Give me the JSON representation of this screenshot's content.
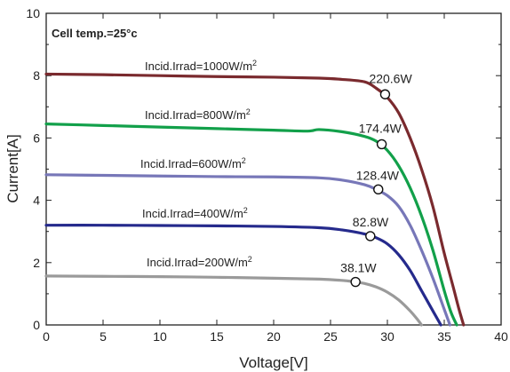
{
  "chart_data": {
    "type": "line",
    "title": "",
    "xlabel": "Voltage[V]",
    "ylabel": "Current[A]",
    "xlim": [
      0,
      40
    ],
    "ylim": [
      0,
      10
    ],
    "xticks": [
      0,
      5,
      10,
      15,
      20,
      25,
      30,
      35,
      40
    ],
    "yticks": [
      0,
      2,
      4,
      6,
      8,
      10
    ],
    "grid": false,
    "annotation": "Cell temp.=25°c",
    "series": [
      {
        "name": "Incid.Irrad=1000W/m2",
        "label_prefix": "Incid.Irrad=1000W/m",
        "label_sup": "2",
        "color": "#7a2a2e",
        "x": [
          0,
          5,
          10,
          15,
          20,
          24,
          26,
          28,
          29,
          30,
          31,
          32,
          33,
          34,
          35,
          35.8,
          36.3,
          36.7
        ],
        "y": [
          8.05,
          8.03,
          8.0,
          7.97,
          7.95,
          7.92,
          7.88,
          7.8,
          7.6,
          7.3,
          6.8,
          6.0,
          5.0,
          3.8,
          2.3,
          1.2,
          0.5,
          0
        ],
        "mpp": {
          "v": 29.8,
          "i": 7.4,
          "label": "220.6W"
        }
      },
      {
        "name": "Incid.Irrad=800W/m2",
        "label_prefix": "Incid.Irrad=800W/m",
        "label_sup": "2",
        "color": "#12a04a",
        "x": [
          0,
          5,
          10,
          15,
          20,
          23,
          24,
          26,
          28,
          29,
          30,
          31,
          32,
          33,
          34,
          35,
          35.6,
          36.1
        ],
        "y": [
          6.45,
          6.4,
          6.35,
          6.3,
          6.25,
          6.22,
          6.27,
          6.2,
          6.05,
          5.9,
          5.6,
          5.1,
          4.4,
          3.5,
          2.4,
          1.1,
          0.4,
          0
        ],
        "mpp": {
          "v": 29.5,
          "i": 5.8,
          "label": "174.4W"
        }
      },
      {
        "name": "Incid.Irrad=600W/m2",
        "label_prefix": "Incid.Irrad=600W/m",
        "label_sup": "2",
        "color": "#7777b8",
        "x": [
          0,
          5,
          10,
          15,
          20,
          24,
          26,
          28,
          29,
          30,
          31,
          32,
          33,
          34,
          35,
          35.5
        ],
        "y": [
          4.82,
          4.8,
          4.78,
          4.76,
          4.75,
          4.72,
          4.65,
          4.5,
          4.35,
          4.15,
          3.8,
          3.2,
          2.4,
          1.5,
          0.5,
          0
        ],
        "mpp": {
          "v": 29.2,
          "i": 4.35,
          "label": "128.4W"
        }
      },
      {
        "name": "Incid.Irrad=400W/m2",
        "label_prefix": "Incid.Irrad=400W/m",
        "label_sup": "2",
        "color": "#252a8c",
        "x": [
          0,
          5,
          10,
          15,
          20,
          24,
          26,
          28,
          29,
          30,
          31,
          32,
          33,
          34,
          34.7
        ],
        "y": [
          3.2,
          3.2,
          3.19,
          3.18,
          3.16,
          3.12,
          3.05,
          2.92,
          2.8,
          2.6,
          2.25,
          1.75,
          1.1,
          0.45,
          0
        ],
        "mpp": {
          "v": 28.5,
          "i": 2.85,
          "label": "82.8W"
        }
      },
      {
        "name": "Incid.Irrad=200W/m2",
        "label_prefix": "Incid.Irrad=200W/m",
        "label_sup": "2",
        "color": "#9a9a9a",
        "x": [
          0,
          5,
          10,
          15,
          20,
          24,
          26,
          27,
          28,
          29,
          30,
          31,
          32,
          32.7,
          33
        ],
        "y": [
          1.57,
          1.56,
          1.55,
          1.53,
          1.5,
          1.47,
          1.43,
          1.39,
          1.33,
          1.22,
          1.05,
          0.8,
          0.45,
          0.15,
          0
        ],
        "mpp": {
          "v": 27.2,
          "i": 1.38,
          "label": "38.1W"
        }
      }
    ]
  }
}
